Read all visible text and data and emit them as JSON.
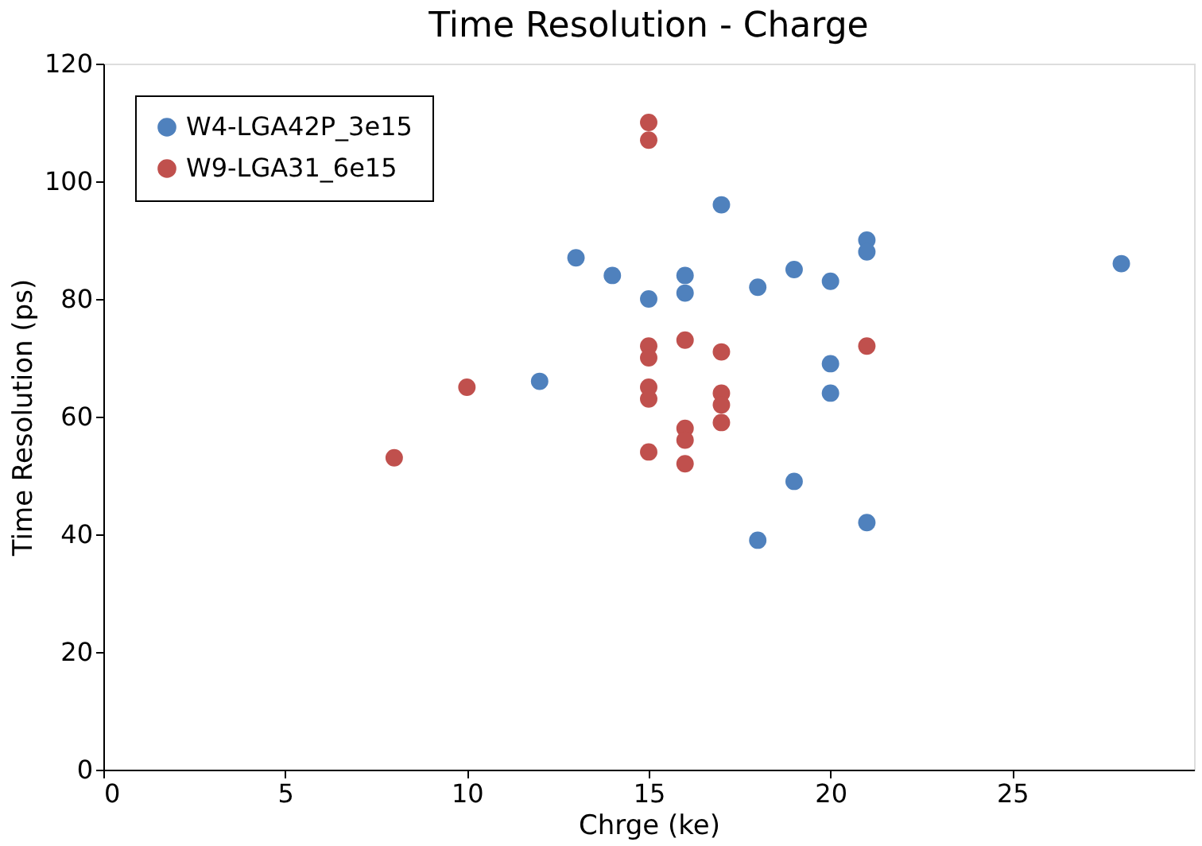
{
  "chart_data": {
    "type": "scatter",
    "title": "Time Resolution - Charge",
    "xlabel": "Chrge (ke)",
    "ylabel": "Time Resolution (ps)",
    "xlim": [
      0,
      30
    ],
    "xticks": [
      0,
      5,
      10,
      15,
      20,
      25
    ],
    "ylim": [
      0,
      120
    ],
    "yticks": [
      0,
      20,
      40,
      60,
      80,
      100,
      120
    ],
    "grid": false,
    "legend": "top left",
    "marker": "circle",
    "series": [
      {
        "name": "W4-LGA42P_3e15",
        "color": "#4f81bd",
        "x": [
          12,
          13,
          14,
          15,
          16,
          16,
          17,
          18,
          18,
          19,
          19,
          20,
          20,
          20,
          21,
          21,
          21,
          28
        ],
        "values": [
          66,
          87,
          84,
          80,
          84,
          81,
          96,
          82,
          39,
          85,
          49,
          83,
          69,
          64,
          90,
          88,
          42,
          86
        ]
      },
      {
        "name": "W9-LGA31_6e15",
        "color": "#c0504d",
        "x": [
          8,
          10,
          15,
          15,
          15,
          15,
          15,
          15,
          15,
          16,
          16,
          16,
          16,
          17,
          17,
          17,
          17,
          21
        ],
        "values": [
          53,
          65,
          110,
          107,
          72,
          70,
          65,
          63,
          54,
          73,
          58,
          56,
          52,
          71,
          64,
          62,
          59,
          72
        ]
      }
    ]
  }
}
